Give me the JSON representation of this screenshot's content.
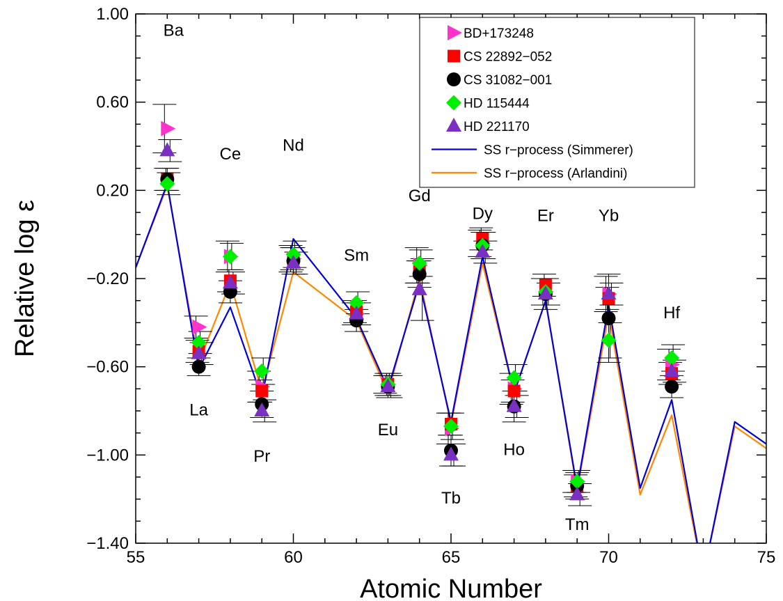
{
  "chart_data": {
    "type": "scatter",
    "xlabel": "Atomic Number",
    "ylabel": "Relative log ε",
    "xlim": [
      55,
      75
    ],
    "ylim": [
      -1.4,
      1.0
    ],
    "xticks": [
      55,
      60,
      65,
      70,
      75
    ],
    "xtick_labels": [
      "55",
      "60",
      "65",
      "70",
      "75"
    ],
    "yticks": [
      1.0,
      0.6,
      0.2,
      -0.2,
      -0.6,
      -1.0,
      -1.4
    ],
    "ytick_labels": [
      "1.00",
      "0.60",
      "0.20",
      "−0.20",
      "−0.60",
      "−1.00",
      "−1.40"
    ],
    "legend_position": "top-right",
    "element_labels": [
      {
        "text": "Ba",
        "x": 56.2,
        "y": 0.9
      },
      {
        "text": "La",
        "x": 57.0,
        "y": -0.82
      },
      {
        "text": "Ce",
        "x": 58.0,
        "y": 0.34
      },
      {
        "text": "Pr",
        "x": 59.0,
        "y": -1.03
      },
      {
        "text": "Nd",
        "x": 60.0,
        "y": 0.38
      },
      {
        "text": "Sm",
        "x": 62.0,
        "y": -0.12
      },
      {
        "text": "Eu",
        "x": 63.0,
        "y": -0.91
      },
      {
        "text": "Gd",
        "x": 64.0,
        "y": 0.15
      },
      {
        "text": "Tb",
        "x": 65.0,
        "y": -1.22
      },
      {
        "text": "Dy",
        "x": 66.0,
        "y": 0.07
      },
      {
        "text": "Ho",
        "x": 67.0,
        "y": -1.0
      },
      {
        "text": "Er",
        "x": 68.0,
        "y": 0.06
      },
      {
        "text": "Yb",
        "x": 70.0,
        "y": 0.06
      },
      {
        "text": "Tm",
        "x": 69.0,
        "y": -1.34
      },
      {
        "text": "Hf",
        "x": 72.0,
        "y": -0.38
      }
    ],
    "series": [
      {
        "name": "BD+173248",
        "marker": "triangle-right",
        "color": "#ff33cc",
        "points": [
          [
            56,
            0.48,
            0.11
          ],
          [
            57,
            -0.42,
            0.05
          ],
          [
            58,
            -0.1,
            0.07
          ],
          [
            59,
            -0.69,
            0.07
          ],
          [
            60,
            -0.11,
            0.06
          ],
          [
            62,
            -0.36,
            0.05
          ],
          [
            63,
            -0.68,
            0.04
          ],
          [
            64,
            -0.14,
            0.08
          ],
          [
            65,
            -0.88,
            0.07
          ],
          [
            66,
            -0.04,
            0.06
          ],
          [
            67,
            -0.7,
            0.07
          ],
          [
            68,
            -0.26,
            0.06
          ],
          [
            69,
            -1.12,
            0.05
          ],
          [
            70,
            -0.27,
            0.08
          ],
          [
            72,
            -0.59,
            0.07
          ]
        ]
      },
      {
        "name": "CS 22892−052",
        "marker": "square",
        "color": "#ff0000",
        "points": [
          [
            56,
            0.25,
            0.05
          ],
          [
            57,
            -0.53,
            0.05
          ],
          [
            58,
            -0.21,
            0.05
          ],
          [
            59,
            -0.71,
            0.05
          ],
          [
            60,
            -0.11,
            0.05
          ],
          [
            62,
            -0.35,
            0.05
          ],
          [
            63,
            -0.68,
            0.05
          ],
          [
            64,
            -0.17,
            0.05
          ],
          [
            65,
            -0.86,
            0.05
          ],
          [
            66,
            -0.02,
            0.05
          ],
          [
            67,
            -0.71,
            0.05
          ],
          [
            68,
            -0.23,
            0.05
          ],
          [
            69,
            -1.14,
            0.05
          ],
          [
            70,
            -0.29,
            0.05
          ],
          [
            72,
            -0.63,
            0.05
          ]
        ]
      },
      {
        "name": "CS 31082−001",
        "marker": "circle",
        "color": "#000000",
        "points": [
          [
            56,
            0.25,
            0.05
          ],
          [
            57,
            -0.6,
            0.04
          ],
          [
            58,
            -0.26,
            0.05
          ],
          [
            59,
            -0.77,
            0.06
          ],
          [
            60,
            -0.12,
            0.06
          ],
          [
            62,
            -0.39,
            0.05
          ],
          [
            63,
            -0.69,
            0.05
          ],
          [
            64,
            -0.18,
            0.06
          ],
          [
            65,
            -0.98,
            0.07
          ],
          [
            66,
            -0.05,
            0.06
          ],
          [
            67,
            -0.78,
            0.07
          ],
          [
            68,
            -0.27,
            0.07
          ],
          [
            69,
            -1.14,
            0.06
          ],
          [
            70,
            -0.38,
            0.2
          ],
          [
            72,
            -0.69,
            0.05
          ]
        ]
      },
      {
        "name": "HD 115444",
        "marker": "diamond",
        "color": "#00ee00",
        "points": [
          [
            56,
            0.23,
            0.05
          ],
          [
            57,
            -0.49,
            0.05
          ],
          [
            58,
            -0.1,
            0.06
          ],
          [
            59,
            -0.62,
            0.06
          ],
          [
            60,
            -0.09,
            0.06
          ],
          [
            62,
            -0.31,
            0.05
          ],
          [
            63,
            -0.68,
            0.05
          ],
          [
            64,
            -0.13,
            0.06
          ],
          [
            65,
            -0.87,
            0.06
          ],
          [
            66,
            -0.05,
            0.06
          ],
          [
            67,
            -0.65,
            0.06
          ],
          [
            68,
            -0.26,
            0.06
          ],
          [
            69,
            -1.12,
            0.05
          ],
          [
            70,
            -0.48,
            0.08
          ],
          [
            72,
            -0.56,
            0.06
          ]
        ]
      },
      {
        "name": "HD 221170",
        "marker": "triangle-up",
        "color": "#7a30c0",
        "points": [
          [
            56,
            0.38,
            0.05
          ],
          [
            57,
            -0.54,
            0.05
          ],
          [
            58,
            -0.22,
            0.05
          ],
          [
            59,
            -0.8,
            0.05
          ],
          [
            60,
            -0.13,
            0.05
          ],
          [
            62,
            -0.36,
            0.05
          ],
          [
            63,
            -0.69,
            0.05
          ],
          [
            64,
            -0.25,
            0.14
          ],
          [
            65,
            -1.0,
            0.05
          ],
          [
            66,
            -0.08,
            0.05
          ],
          [
            67,
            -0.78,
            0.05
          ],
          [
            68,
            -0.27,
            0.05
          ],
          [
            69,
            -1.18,
            0.05
          ],
          [
            70,
            -0.27,
            0.05
          ],
          [
            72,
            -0.62,
            0.05
          ]
        ]
      }
    ],
    "lines": [
      {
        "name": "SS r−process (Simmerer)",
        "color": "#0000dd",
        "points": [
          [
            55,
            -0.15
          ],
          [
            56,
            0.23
          ],
          [
            57,
            -0.61
          ],
          [
            58,
            -0.33
          ],
          [
            59,
            -0.74
          ],
          [
            60,
            -0.02
          ],
          [
            62,
            -0.38
          ],
          [
            63,
            -0.7
          ],
          [
            64,
            -0.22
          ],
          [
            65,
            -0.85
          ],
          [
            66,
            -0.1
          ],
          [
            67,
            -0.72
          ],
          [
            68,
            -0.3
          ],
          [
            69,
            -1.15
          ],
          [
            70,
            -0.32
          ],
          [
            71,
            -1.15
          ],
          [
            72,
            -0.75
          ],
          [
            73,
            -1.55
          ],
          [
            74,
            -0.85
          ],
          [
            75,
            -0.95
          ]
        ]
      },
      {
        "name": "SS r−process (Arlandini)",
        "color": "#ff8800",
        "points": [
          [
            55,
            -0.15
          ],
          [
            56,
            0.22
          ],
          [
            57,
            -0.58
          ],
          [
            58,
            -0.22
          ],
          [
            59,
            -0.71
          ],
          [
            60,
            -0.17
          ],
          [
            62,
            -0.39
          ],
          [
            63,
            -0.72
          ],
          [
            64,
            -0.2
          ],
          [
            65,
            -0.86
          ],
          [
            66,
            -0.13
          ],
          [
            67,
            -0.72
          ],
          [
            68,
            -0.3
          ],
          [
            69,
            -1.16
          ],
          [
            70,
            -0.36
          ],
          [
            71,
            -1.18
          ],
          [
            72,
            -0.82
          ],
          [
            73,
            -1.55
          ],
          [
            74,
            -0.87
          ],
          [
            75,
            -0.97
          ]
        ]
      }
    ]
  }
}
